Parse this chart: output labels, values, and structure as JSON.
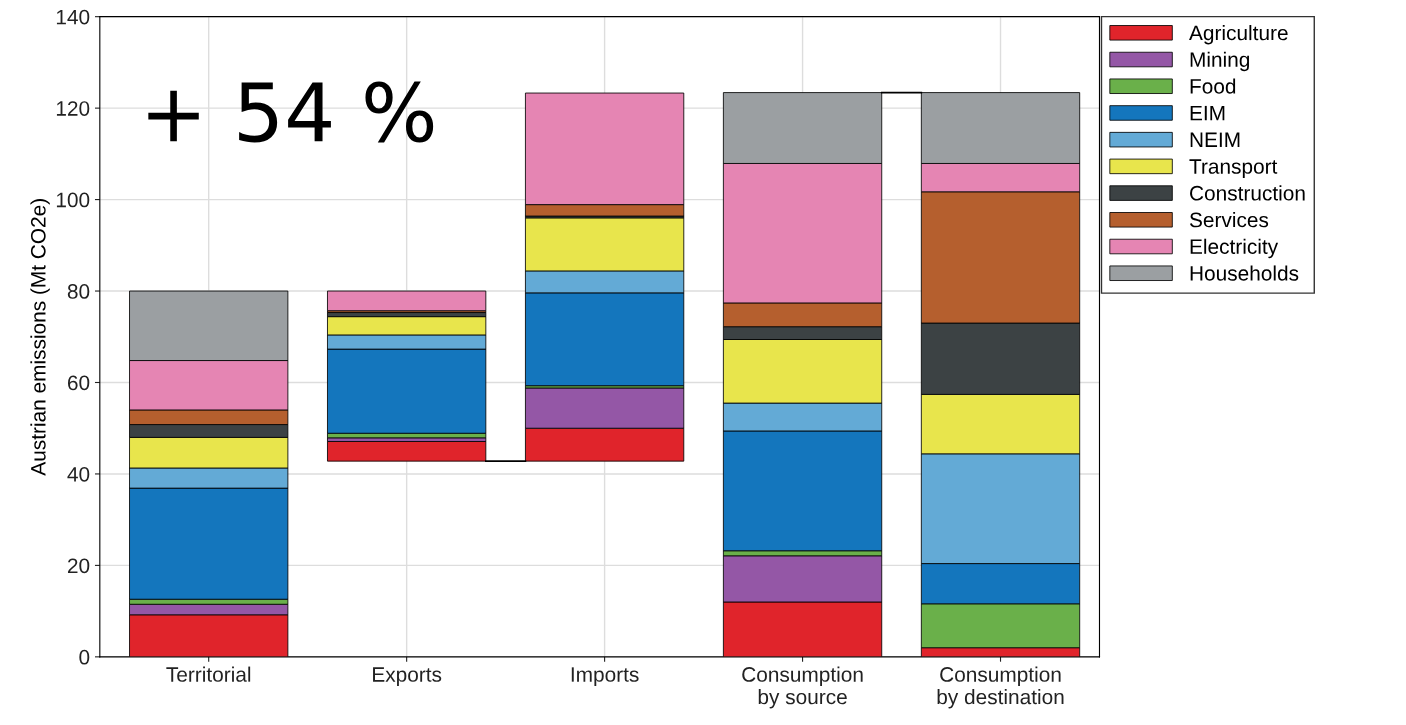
{
  "chart_data": {
    "type": "bar",
    "stacked": true,
    "ylabel": "Austrian emissions (Mt CO2e)",
    "categories": [
      "Territorial",
      "Exports",
      "Imports",
      "Consumption\nby source",
      "Consumption\nby destination"
    ],
    "series": [
      {
        "name": "Agriculture",
        "color": "#e0242b",
        "base": [
          0,
          42.8,
          42.8,
          0,
          0
        ],
        "values": [
          9.2,
          4.3,
          7.2,
          12.0,
          2.0
        ]
      },
      {
        "name": "Mining",
        "color": "#9457a6",
        "values": [
          2.3,
          0.8,
          8.8,
          10.1,
          null
        ]
      },
      {
        "name": "Food",
        "color": "#6ab04a",
        "values": [
          1.1,
          1.0,
          0.5,
          1.1,
          9.6
        ]
      },
      {
        "name": "EIM",
        "color": "#1476bd",
        "values": [
          24.3,
          18.4,
          20.3,
          26.2,
          8.8
        ]
      },
      {
        "name": "NEIM",
        "color": "#63aad6",
        "values": [
          4.4,
          3.1,
          4.8,
          6.1,
          24.0
        ]
      },
      {
        "name": "Transport",
        "color": "#e8e54c",
        "values": [
          6.7,
          4.0,
          11.6,
          13.9,
          13.0
        ]
      },
      {
        "name": "Construction",
        "color": "#3c4244",
        "values": [
          2.8,
          0.9,
          0.4,
          2.8,
          15.6
        ]
      },
      {
        "name": "Services",
        "color": "#b55f2e",
        "values": [
          3.2,
          0.4,
          2.5,
          5.2,
          28.7
        ]
      },
      {
        "name": "Electricity",
        "color": "#e585b3",
        "values": [
          10.8,
          4.3,
          24.4,
          30.5,
          6.2
        ]
      },
      {
        "name": "Households",
        "color": "#9b9fa2",
        "values": [
          15.2,
          null,
          null,
          15.5,
          15.5
        ]
      }
    ],
    "ylim": [
      0,
      140
    ],
    "yticks": [
      0,
      20,
      40,
      60,
      80,
      100,
      120,
      140
    ],
    "grid": true,
    "legend": "top right",
    "annotations": [
      "+ 54 %"
    ]
  }
}
